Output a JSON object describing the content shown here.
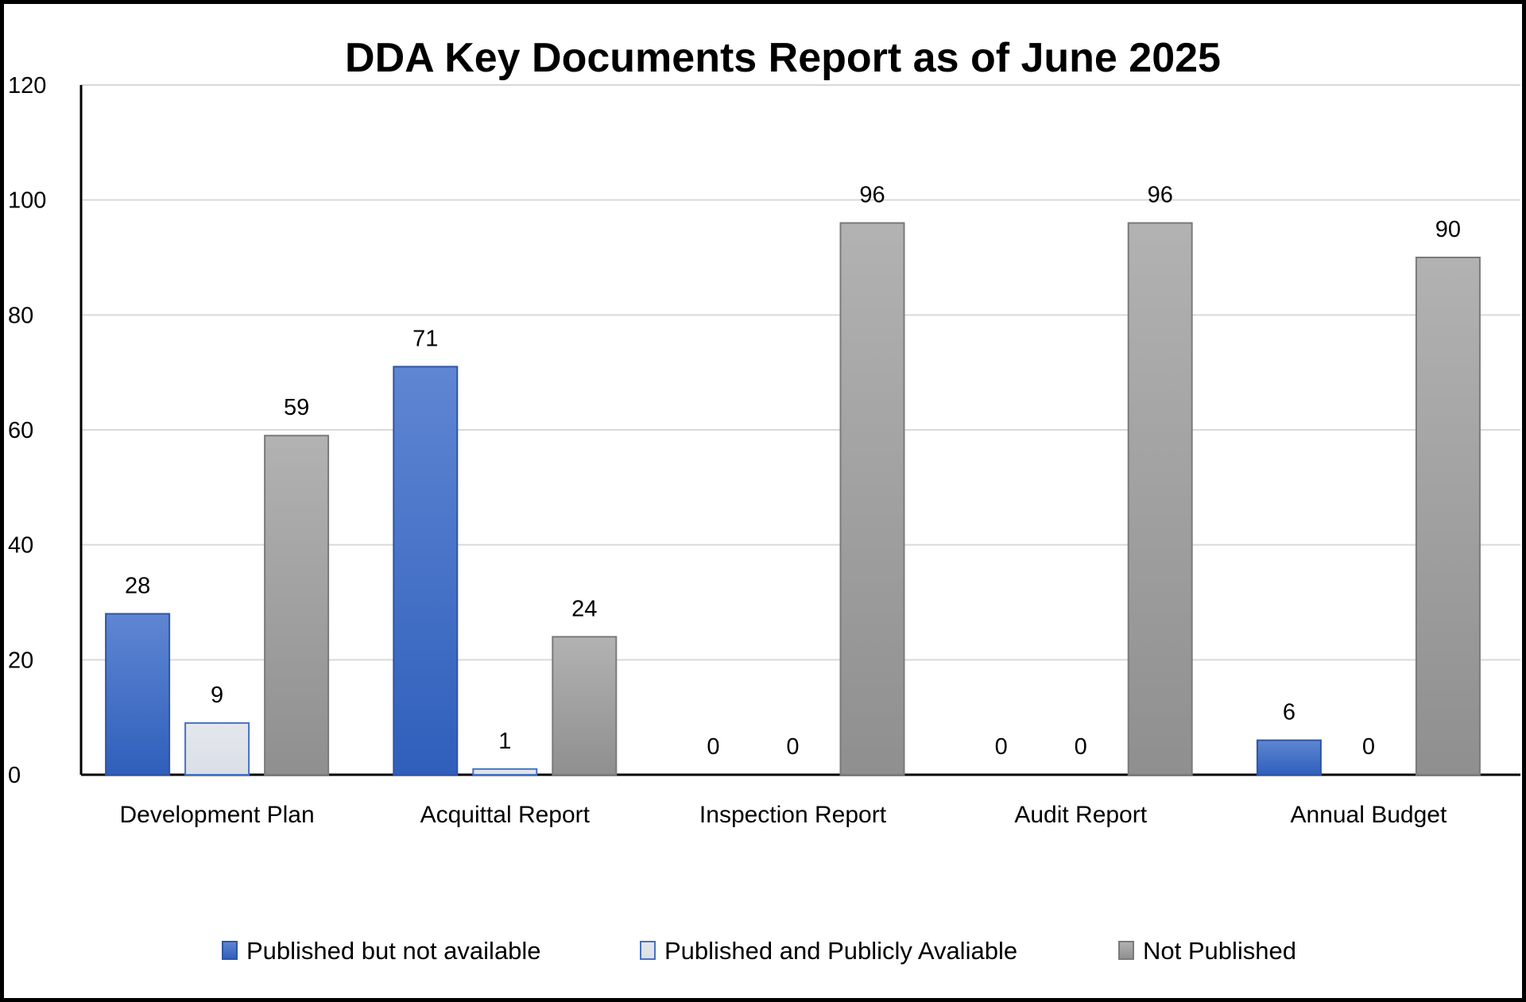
{
  "chart_data": {
    "type": "bar",
    "title": "DDA Key Documents Report as of June 2025",
    "xlabel": "",
    "ylabel": "",
    "ylim": [
      0,
      120
    ],
    "yticks": [
      0,
      20,
      40,
      60,
      80,
      100,
      120
    ],
    "grid": true,
    "legend_position": "bottom",
    "categories": [
      "Development Plan",
      "Acquittal Report",
      "Inspection Report",
      "Audit Report",
      "Annual Budget"
    ],
    "series": [
      {
        "name": "Published but not available",
        "values": [
          28,
          71,
          0,
          0,
          6
        ],
        "color": "#4472c4"
      },
      {
        "name": "Published and Publicly Avaliable",
        "values": [
          9,
          1,
          0,
          0,
          0
        ],
        "color": "#dde2ea"
      },
      {
        "name": "Not Published",
        "values": [
          59,
          24,
          96,
          96,
          90
        ],
        "color": "#a5a5a5"
      }
    ]
  }
}
